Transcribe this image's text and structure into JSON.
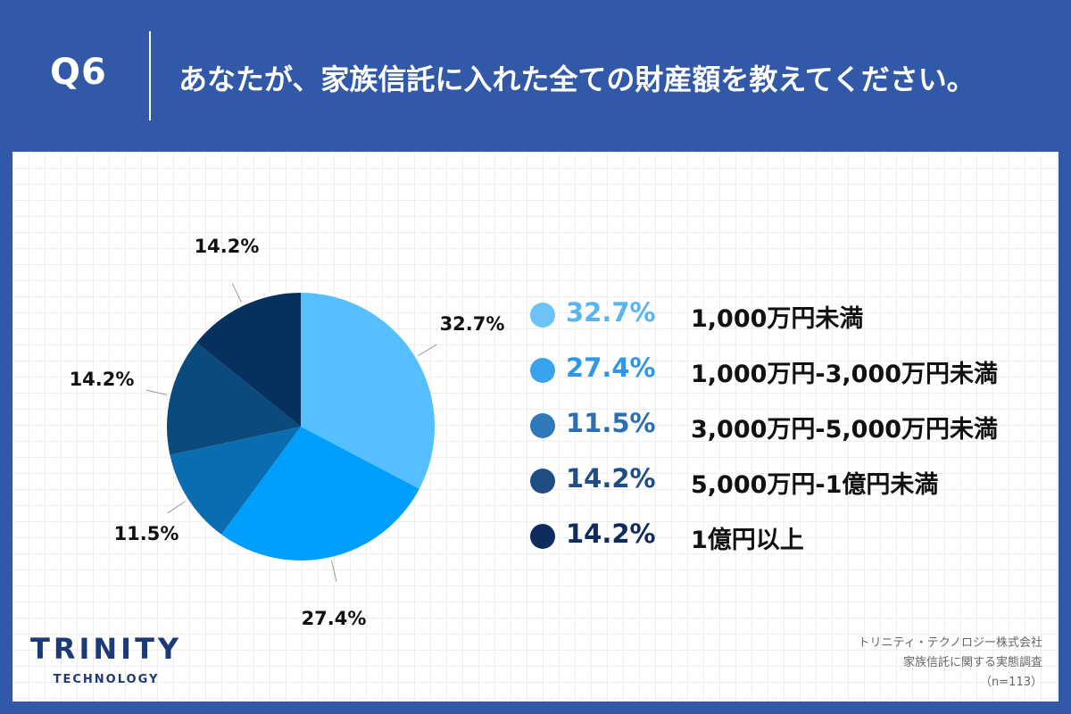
{
  "header": {
    "question_number": "Q6",
    "question_text": "あなたが、家族信託に入れた全ての財産額を教えてください。"
  },
  "chart_data": {
    "type": "pie",
    "categories": [
      "1,000万円未満",
      "1,000万円-3,000万円未満",
      "3,000万円-5,000万円未満",
      "5,000万円-1億円未満",
      "1億円以上"
    ],
    "values": [
      32.7,
      27.4,
      11.5,
      14.2,
      14.2
    ],
    "labels": [
      "32.7%",
      "27.4%",
      "11.5%",
      "14.2%",
      "14.2%"
    ],
    "slice_colors": [
      "#55bfff",
      "#009ffd",
      "#0a6db0",
      "#0b4a7c",
      "#06305e"
    ],
    "legend_dot_colors": [
      "#6cc3f7",
      "#3aa3ee",
      "#2f78b9",
      "#1f4d84",
      "#0f2d5c"
    ],
    "legend_text_colors": [
      "#5ab5ee",
      "#2f97e6",
      "#2c6fb0",
      "#1f4d84",
      "#0f2d5c"
    ],
    "start_angle": "12 o'clock",
    "direction": "clockwise",
    "legend_position": "right"
  },
  "logo": {
    "main": "TRINITY",
    "sub": "TECHNOLOGY"
  },
  "source": {
    "company": "トリニティ・テクノロジー株式会社",
    "survey": "家族信託に関する実態調査",
    "sample": "（n=113）"
  }
}
